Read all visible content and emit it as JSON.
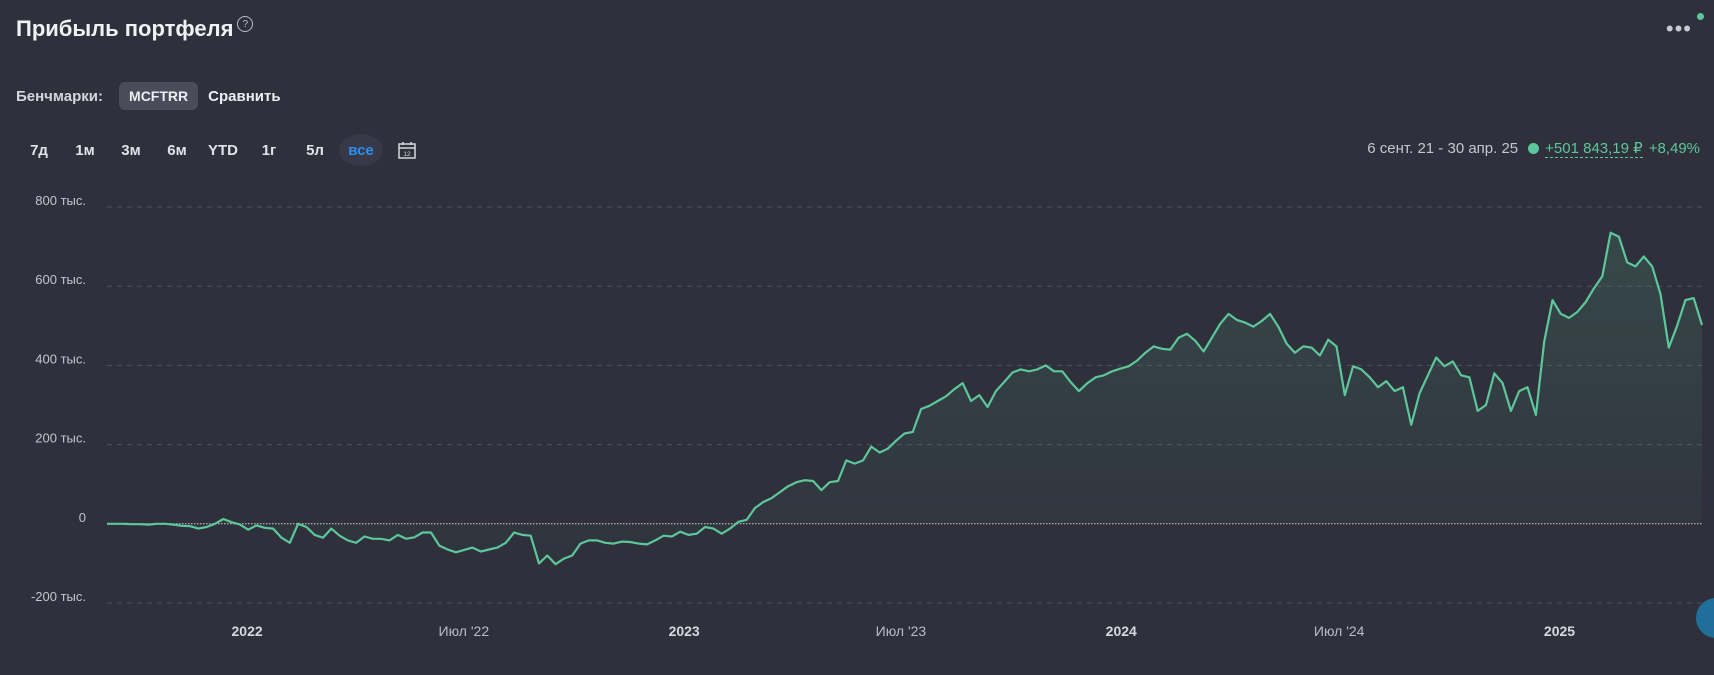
{
  "header": {
    "title": "Прибыль портфеля",
    "help": "?",
    "menu": "•••"
  },
  "benchmarks": {
    "label": "Бенчмарки:",
    "chip": "MCFTRR",
    "compare": "Сравнить"
  },
  "ranges": [
    "7д",
    "1м",
    "3м",
    "6м",
    "YTD",
    "1г",
    "5л",
    "все"
  ],
  "active_range": "все",
  "summary": {
    "period": "6 сент. 21 - 30 апр. 25",
    "profit": "+501 843,19 ₽",
    "percent": "+8,49%"
  },
  "colors": {
    "accent": "#5cc79a",
    "active_tab": "#2e8ef0",
    "background": "#2f303b"
  },
  "chart_data": {
    "type": "area",
    "ylim": [
      -200000,
      800000
    ],
    "y_ticks": [
      {
        "value": 800000,
        "label": "800 тыс."
      },
      {
        "value": 600000,
        "label": "600 тыс."
      },
      {
        "value": 400000,
        "label": "400 тыс."
      },
      {
        "value": 200000,
        "label": "200 тыс."
      },
      {
        "value": 0,
        "label": "0"
      },
      {
        "value": -200000,
        "label": "-200 тыс."
      }
    ],
    "x_ticks": [
      {
        "date": "2022-01-01",
        "label": "2022",
        "bold": true
      },
      {
        "date": "2022-07-01",
        "label": "Июл '22",
        "bold": false
      },
      {
        "date": "2023-01-01",
        "label": "2023",
        "bold": true
      },
      {
        "date": "2023-07-01",
        "label": "Июл '23",
        "bold": false
      },
      {
        "date": "2024-01-01",
        "label": "2024",
        "bold": true
      },
      {
        "date": "2024-07-01",
        "label": "Июл '24",
        "bold": false
      },
      {
        "date": "2025-01-01",
        "label": "2025",
        "bold": true
      }
    ],
    "series": [
      {
        "start": "2021-09-06",
        "end": "2025-04-30",
        "values": [
          0,
          0,
          0,
          -1000,
          -1000,
          -2000,
          0,
          0,
          -2000,
          -5000,
          -6000,
          -12000,
          -8000,
          0,
          12000,
          4000,
          -2000,
          -15000,
          -4000,
          -10000,
          -12000,
          -35000,
          -48000,
          0,
          -8000,
          -28000,
          -35000,
          -12000,
          -30000,
          -42000,
          -48000,
          -32000,
          -38000,
          -38000,
          -42000,
          -28000,
          -38000,
          -34000,
          -22000,
          -22000,
          -55000,
          -65000,
          -72000,
          -66000,
          -60000,
          -70000,
          -65000,
          -60000,
          -48000,
          -22000,
          -28000,
          -30000,
          -100000,
          -80000,
          -102000,
          -88000,
          -80000,
          -50000,
          -42000,
          -42000,
          -48000,
          -50000,
          -45000,
          -46000,
          -50000,
          -52000,
          -42000,
          -30000,
          -32000,
          -20000,
          -28000,
          -25000,
          -8000,
          -12000,
          -25000,
          -12000,
          5000,
          10000,
          40000,
          55000,
          65000,
          80000,
          95000,
          105000,
          110000,
          108000,
          85000,
          105000,
          108000,
          160000,
          152000,
          160000,
          195000,
          180000,
          190000,
          210000,
          228000,
          232000,
          290000,
          298000,
          310000,
          322000,
          340000,
          355000,
          310000,
          325000,
          295000,
          335000,
          358000,
          382000,
          390000,
          385000,
          390000,
          400000,
          385000,
          385000,
          358000,
          335000,
          355000,
          370000,
          375000,
          385000,
          392000,
          398000,
          412000,
          432000,
          448000,
          442000,
          440000,
          470000,
          480000,
          462000,
          435000,
          470000,
          505000,
          530000,
          515000,
          508000,
          498000,
          512000,
          530000,
          498000,
          455000,
          432000,
          448000,
          445000,
          425000,
          465000,
          448000,
          325000,
          398000,
          390000,
          370000,
          345000,
          360000,
          335000,
          345000,
          250000,
          330000,
          375000,
          420000,
          398000,
          410000,
          375000,
          370000,
          285000,
          300000,
          380000,
          355000,
          285000,
          335000,
          345000,
          275000,
          460000,
          565000,
          530000,
          520000,
          535000,
          560000,
          595000,
          625000,
          735000,
          725000,
          660000,
          650000,
          675000,
          650000,
          580000,
          445000,
          500000,
          565000,
          570000,
          502000
        ]
      }
    ]
  }
}
